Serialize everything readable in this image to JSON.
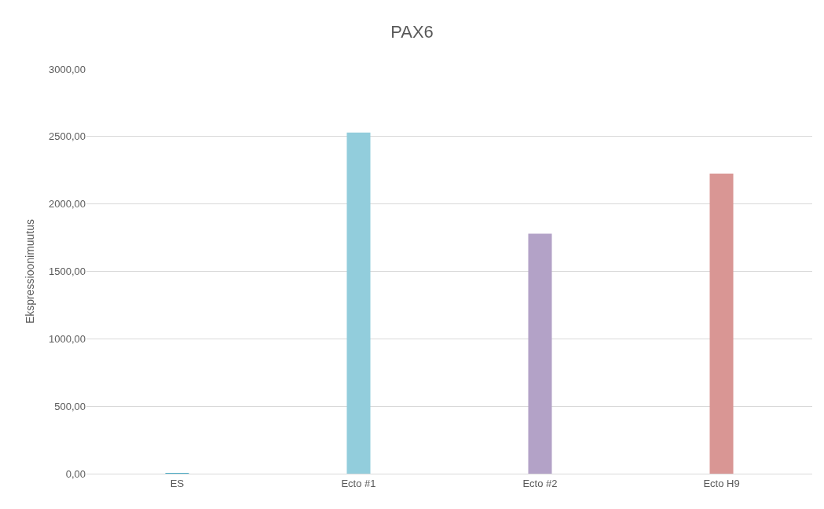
{
  "chart_data": {
    "type": "bar",
    "title": "PAX6",
    "ylabel": "Ekspressioonimuutus",
    "categories": [
      "ES",
      "Ecto #1",
      "Ecto #2",
      "Ecto H9"
    ],
    "values": [
      1,
      2530,
      1780,
      2225
    ],
    "colors": [
      "#4bacc6",
      "#92cddc",
      "#b3a2c7",
      "#d99694"
    ],
    "ylim": [
      0,
      3000
    ],
    "yticks": [
      {
        "value": 0,
        "label": "0,00"
      },
      {
        "value": 500,
        "label": "500,00"
      },
      {
        "value": 1000,
        "label": "1000,00"
      },
      {
        "value": 1500,
        "label": "1500,00"
      },
      {
        "value": 2000,
        "label": "2000,00"
      },
      {
        "value": 2500,
        "label": "2500,00"
      },
      {
        "value": 3000,
        "label": "3000,00"
      }
    ],
    "grid": "y"
  }
}
